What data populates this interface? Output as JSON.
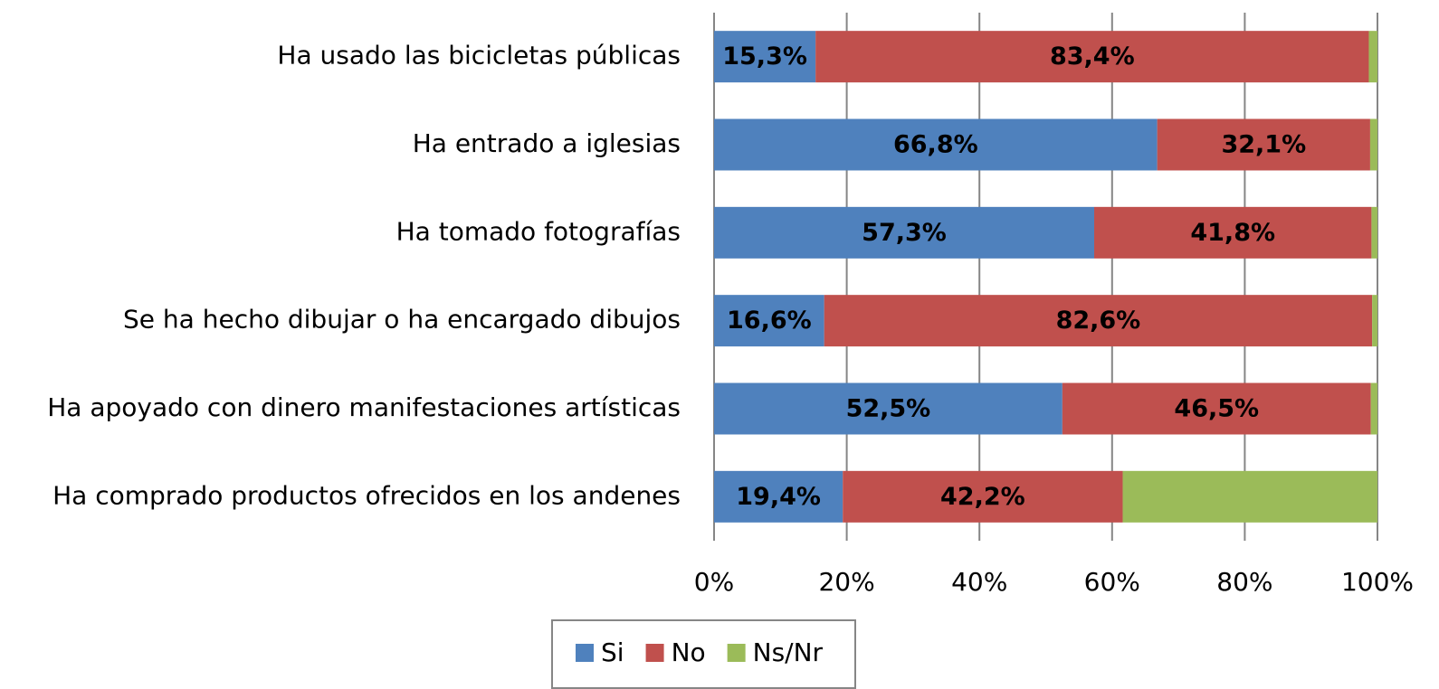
{
  "chart_data": {
    "type": "stacked-barh",
    "categories": [
      "Ha usado las bicicletas públicas",
      "Ha entrado a iglesias",
      "Ha tomado fotografías",
      "Se ha hecho dibujar o ha encargado dibujos",
      "Ha apoyado con dinero manifestaciones artísticas",
      "Ha comprado productos ofrecidos en los andenes"
    ],
    "series": [
      {
        "name": "Si",
        "color": "#4f81bd",
        "values": [
          15.3,
          66.8,
          57.3,
          16.6,
          52.5,
          19.4
        ],
        "value_labels": [
          "15,3%",
          "66,8%",
          "57,3%",
          "16,6%",
          "52,5%",
          "19,4%"
        ]
      },
      {
        "name": "No",
        "color": "#c0504d",
        "values": [
          83.4,
          32.1,
          41.8,
          82.6,
          46.5,
          42.2
        ],
        "value_labels": [
          "83,4%",
          "32,1%",
          "41,8%",
          "82,6%",
          "46,5%",
          "42,2%"
        ]
      },
      {
        "name": "Ns/Nr",
        "color": "#9bbb59",
        "values": [
          1.3,
          1.1,
          0.9,
          0.8,
          1.0,
          38.4
        ]
      }
    ],
    "xlim": [
      0,
      100
    ],
    "xticks": [
      {
        "value": 0,
        "label": "0%"
      },
      {
        "value": 20,
        "label": "20%"
      },
      {
        "value": 40,
        "label": "40%"
      },
      {
        "value": 60,
        "label": "60%"
      },
      {
        "value": 80,
        "label": "80%"
      },
      {
        "value": 100,
        "label": "100%"
      }
    ],
    "grid": true,
    "legend": "bottom"
  }
}
